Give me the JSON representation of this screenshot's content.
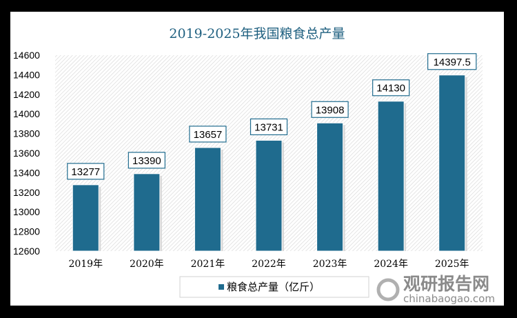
{
  "chart_data": {
    "type": "bar",
    "title": "2019-2025年我国粮食总产量",
    "categories": [
      "2019年",
      "2020年",
      "2021年",
      "2022年",
      "2023年",
      "2024年",
      "2025年"
    ],
    "series": [
      {
        "name": "粮食总产量（亿斤）",
        "values": [
          13277,
          13390,
          13657,
          13731,
          13908,
          14130,
          14397.5
        ]
      }
    ],
    "data_labels": [
      "13277",
      "13390",
      "13657",
      "13731",
      "13908",
      "14130",
      "14397.5"
    ],
    "yticks": [
      "12600",
      "12800",
      "13000",
      "13200",
      "13400",
      "13600",
      "13800",
      "14000",
      "14200",
      "14400",
      "14600"
    ],
    "ylim": [
      12600,
      14600
    ],
    "xlabel": "",
    "ylabel": "",
    "legend_position": "bottom-left",
    "colors": {
      "bar": "#1f6b8e",
      "title": "#1f6080",
      "label_border": "#1f6b8e"
    }
  },
  "watermark": {
    "name": "观研报告网",
    "url": "chinabaogao.com"
  }
}
